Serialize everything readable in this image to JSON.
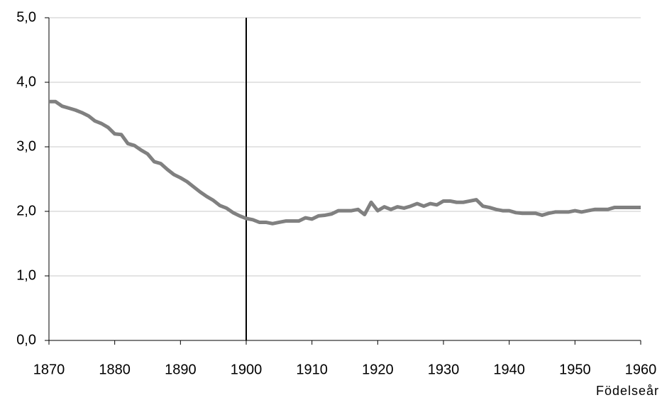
{
  "chart_data": {
    "type": "line",
    "x_label": "Födelseår",
    "x": [
      1870,
      1871,
      1872,
      1873,
      1874,
      1875,
      1876,
      1877,
      1878,
      1879,
      1880,
      1881,
      1882,
      1883,
      1884,
      1885,
      1886,
      1887,
      1888,
      1889,
      1890,
      1891,
      1892,
      1893,
      1894,
      1895,
      1896,
      1897,
      1898,
      1899,
      1900,
      1901,
      1902,
      1903,
      1904,
      1905,
      1906,
      1907,
      1908,
      1909,
      1910,
      1911,
      1912,
      1913,
      1914,
      1915,
      1916,
      1917,
      1918,
      1919,
      1920,
      1921,
      1922,
      1923,
      1924,
      1925,
      1926,
      1927,
      1928,
      1929,
      1930,
      1931,
      1932,
      1933,
      1934,
      1935,
      1936,
      1937,
      1938,
      1939,
      1940,
      1941,
      1942,
      1943,
      1944,
      1945,
      1946,
      1947,
      1948,
      1949,
      1950,
      1951,
      1952,
      1953,
      1954,
      1955,
      1956,
      1957,
      1958,
      1959,
      1960
    ],
    "series": [
      {
        "color": "#808080",
        "values": [
          3.7,
          3.7,
          3.63,
          3.6,
          3.57,
          3.53,
          3.48,
          3.4,
          3.36,
          3.3,
          3.2,
          3.19,
          3.05,
          3.02,
          2.95,
          2.89,
          2.77,
          2.74,
          2.65,
          2.57,
          2.52,
          2.46,
          2.38,
          2.3,
          2.23,
          2.17,
          2.09,
          2.05,
          1.98,
          1.93,
          1.89,
          1.87,
          1.83,
          1.83,
          1.81,
          1.83,
          1.85,
          1.85,
          1.85,
          1.9,
          1.88,
          1.93,
          1.94,
          1.96,
          2.01,
          2.01,
          2.01,
          2.03,
          1.95,
          2.14,
          2.01,
          2.07,
          2.03,
          2.07,
          2.05,
          2.08,
          2.12,
          2.08,
          2.12,
          2.1,
          2.16,
          2.16,
          2.14,
          2.14,
          2.16,
          2.18,
          2.08,
          2.06,
          2.03,
          2.01,
          2.01,
          1.98,
          1.97,
          1.97,
          1.97,
          1.94,
          1.97,
          1.99,
          1.99,
          1.99,
          2.01,
          1.99,
          2.01,
          2.03,
          2.03,
          2.03,
          2.06,
          2.06,
          2.06,
          2.06,
          2.06
        ]
      }
    ],
    "vertical_line_x": 1900,
    "xlim": [
      1870,
      1960
    ],
    "xticks": [
      1870,
      1880,
      1890,
      1900,
      1910,
      1920,
      1930,
      1940,
      1950,
      1960
    ],
    "ylim": [
      0,
      5
    ],
    "yticks": [
      {
        "value": 0,
        "label": "0,0"
      },
      {
        "value": 1,
        "label": "1,0"
      },
      {
        "value": 2,
        "label": "2,0"
      },
      {
        "value": 3,
        "label": "3,0"
      },
      {
        "value": 4,
        "label": "4,0"
      },
      {
        "value": 5,
        "label": "5,0"
      }
    ],
    "grid": true
  }
}
